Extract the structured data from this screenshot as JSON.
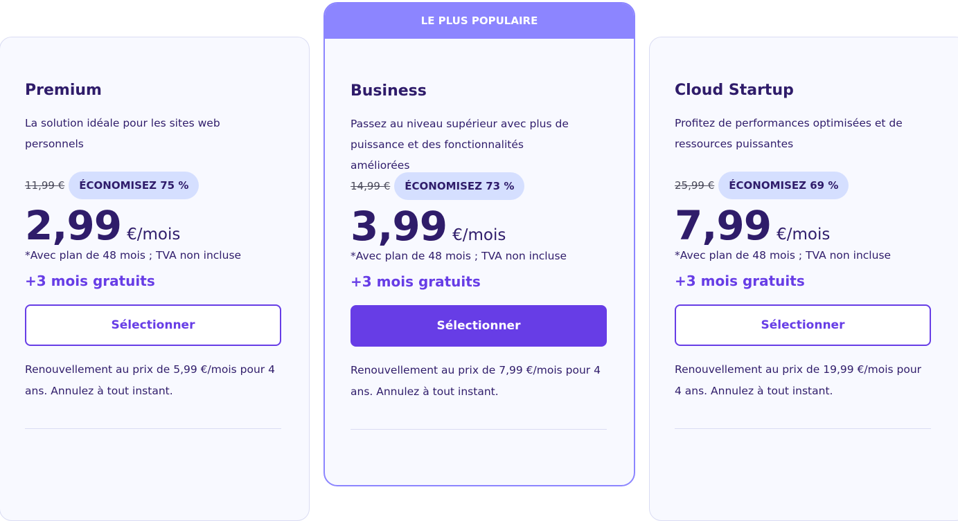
{
  "popular_label": "LE PLUS POPULAIRE",
  "plans": [
    {
      "name": "Premium",
      "description": "La solution idéale pour les sites web personnels",
      "old_price": "11,99 €",
      "discount": "ÉCONOMISEZ 75 %",
      "price": "2,99",
      "unit": "€/mois",
      "note": "*Avec plan de 48 mois ; TVA non incluse",
      "bonus": "+3 mois gratuits",
      "button": "Sélectionner",
      "renewal": "Renouvellement au prix de 5,99 €/mois pour 4 ans. Annulez à tout instant."
    },
    {
      "name": "Business",
      "description": "Passez au niveau supérieur avec plus de puissance et des fonctionnalités améliorées",
      "old_price": "14,99 €",
      "discount": "ÉCONOMISEZ 73 %",
      "price": "3,99",
      "unit": "€/mois",
      "note": "*Avec plan de 48 mois ; TVA non incluse",
      "bonus": "+3 mois gratuits",
      "button": "Sélectionner",
      "renewal": "Renouvellement au prix de 7,99 €/mois pour 4 ans. Annulez à tout instant."
    },
    {
      "name": "Cloud Startup",
      "description": "Profitez de performances optimisées et de ressources puissantes",
      "old_price": "25,99 €",
      "discount": "ÉCONOMISEZ 69 %",
      "price": "7,99",
      "unit": "€/mois",
      "note": "*Avec plan de 48 mois ; TVA non incluse",
      "bonus": "+3 mois gratuits",
      "button": "Sélectionner",
      "renewal": "Renouvellement au prix de 19,99 €/mois pour 4 ans. Annulez à tout instant."
    }
  ],
  "colors": {
    "accent": "#673de6",
    "popular": "#8c85ff",
    "badge": "#d5dfff",
    "text": "#2f1c6a"
  }
}
